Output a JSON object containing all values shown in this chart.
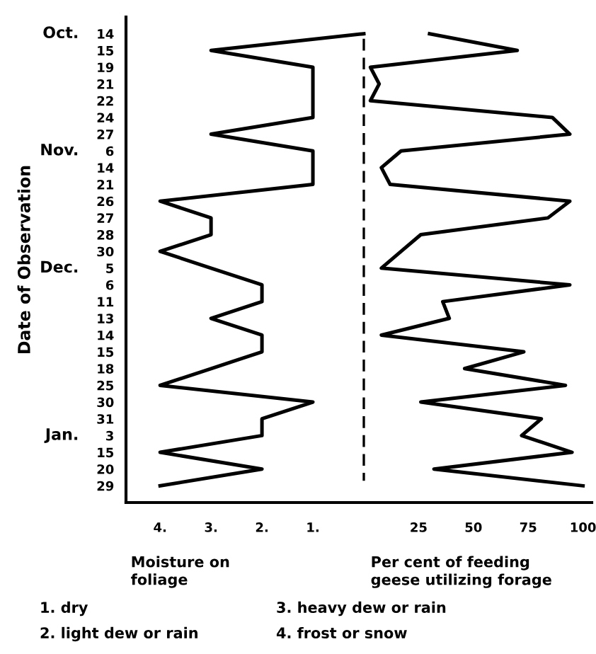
{
  "chart_data": [
    {
      "type": "line",
      "orientation": "horizontal",
      "color": "#000000",
      "marker": "none",
      "line_style": "solid",
      "categories": [
        "14",
        "15",
        "19",
        "21",
        "22",
        "24",
        "27",
        "6",
        "14",
        "21",
        "26",
        "27",
        "28",
        "30",
        "5",
        "6",
        "11",
        "13",
        "14",
        "15",
        "18",
        "25",
        "30",
        "31",
        "3",
        "15",
        "20",
        "29"
      ],
      "values": [
        0,
        3,
        1,
        1,
        1,
        1,
        3,
        1,
        1,
        1,
        4,
        3,
        3,
        4,
        3,
        2,
        2,
        3,
        2,
        2,
        3,
        4,
        1,
        2,
        2,
        4,
        2,
        4
      ],
      "xlim": [
        4.67,
        0
      ],
      "xticks": [
        {
          "value": 4,
          "label": "4."
        },
        {
          "value": 3,
          "label": "3."
        },
        {
          "value": 2,
          "label": "2."
        },
        {
          "value": 1,
          "label": "1."
        }
      ],
      "xlabel": "Moisture on\nfoliage",
      "ylabel": "Date of Observation",
      "annotations": [
        "Oct.",
        "Nov.",
        "Dec.",
        "Jan.",
        "1. dry",
        "2. light dew or rain",
        "3. heavy dew or rain",
        "4. frost or snow"
      ]
    },
    {
      "type": "line",
      "orientation": "horizontal",
      "color": "#000000",
      "marker": "none",
      "line_style": "solid",
      "tick_labels": "x",
      "categories": [
        "14",
        "15",
        "19",
        "21",
        "22",
        "24",
        "27",
        "6",
        "14",
        "21",
        "26",
        "27",
        "28",
        "30",
        "5",
        "6",
        "11",
        "13",
        "14",
        "15",
        "18",
        "25",
        "30",
        "31",
        "3",
        "15",
        "20",
        "29"
      ],
      "values": [
        30,
        70,
        3,
        7,
        3,
        86,
        94,
        17,
        8,
        12,
        94,
        84,
        26,
        17,
        8,
        94,
        36,
        39,
        8,
        73,
        46,
        92,
        26,
        81,
        72,
        95,
        32,
        100
      ],
      "xlim": [
        0,
        104
      ],
      "xticks": [
        25,
        50,
        75,
        100
      ],
      "xlabel": "Per cent of feeding\ngeese utilizing forage",
      "ref_lines": [
        {
          "axis": "x",
          "value": 0,
          "line_style": "dashed",
          "color": "#000000"
        }
      ]
    }
  ]
}
